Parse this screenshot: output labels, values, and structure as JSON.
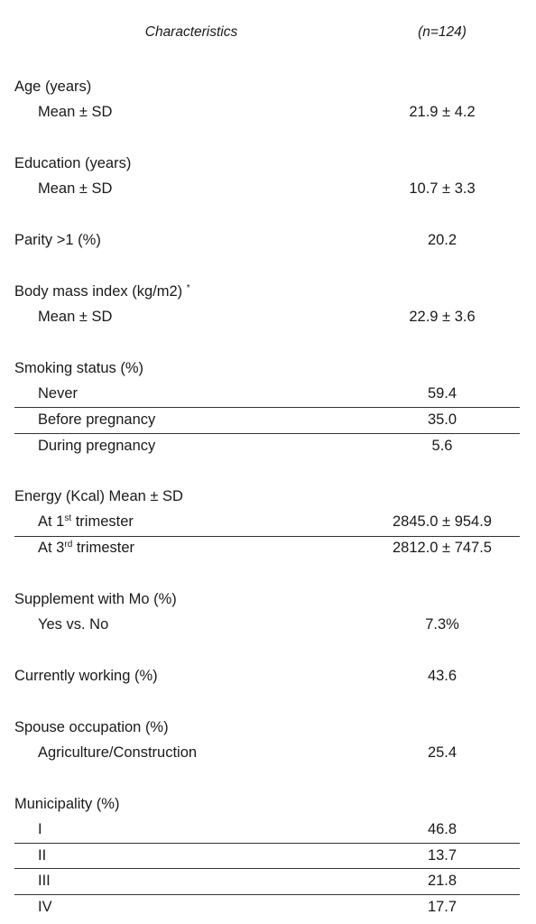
{
  "header": {
    "characteristics": "Characteristics",
    "n": "(n=124)"
  },
  "age": {
    "title": "Age (years)",
    "stat": "Mean ± SD",
    "value": "21.9 ± 4.2"
  },
  "education": {
    "title": "Education (years)",
    "stat": "Mean ± SD",
    "value": "10.7 ± 3.3"
  },
  "parity": {
    "title": "Parity >1 (%)",
    "value": "20.2"
  },
  "bmi": {
    "title": "Body mass index (kg/m2)",
    "marker": "*",
    "stat": "Mean ± SD",
    "value": "22.9 ± 3.6"
  },
  "smoking": {
    "title": "Smoking status (%)",
    "never": {
      "label": "Never",
      "value": "59.4"
    },
    "before": {
      "label": "Before pregnancy",
      "value": "35.0"
    },
    "during": {
      "label": "During pregnancy",
      "value": "5.6"
    }
  },
  "energy": {
    "title": "Energy (Kcal) Mean ± SD",
    "t1": {
      "prefix": "At 1",
      "sup": "st",
      "suffix": " trimester",
      "value": "2845.0 ± 954.9"
    },
    "t3": {
      "prefix": "At 3",
      "sup": "rd",
      "suffix": " trimester",
      "value": "2812.0 ± 747.5"
    }
  },
  "supplement": {
    "title": "Supplement with Mo (%)",
    "label": "Yes vs. No",
    "value": "7.3%"
  },
  "working": {
    "title": "Currently working (%)",
    "value": "43.6"
  },
  "spouse": {
    "title": "Spouse occupation (%)",
    "label": "Agriculture/Construction",
    "value": "25.4"
  },
  "municipality": {
    "title": "Municipality (%)",
    "i": {
      "label": "I",
      "value": "46.8"
    },
    "ii": {
      "label": "II",
      "value": "13.7"
    },
    "iii": {
      "label": "III",
      "value": "21.8"
    },
    "iv": {
      "label": "IV",
      "value": "17.7"
    }
  }
}
